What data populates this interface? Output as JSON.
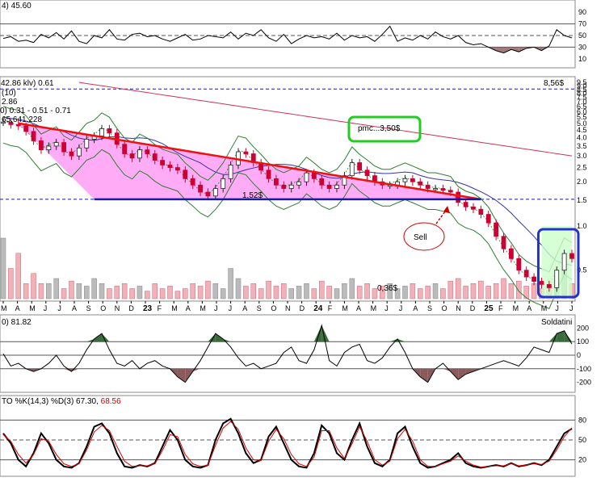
{
  "chart_data": [
    {
      "panel": "rsi",
      "type": "line",
      "title": "4) 45.60",
      "y_ticks": [
        90,
        70,
        50,
        30,
        10
      ],
      "ylim": [
        0,
        100
      ],
      "value": 45.6,
      "reference_lines": [
        70,
        50,
        30
      ],
      "series": [
        {
          "values": [
            45,
            48,
            40,
            42,
            38,
            52,
            46,
            55,
            44,
            58,
            40,
            36,
            50,
            46,
            60,
            44,
            42,
            52,
            54,
            48,
            50,
            44,
            40,
            46,
            52,
            42,
            44,
            50,
            48,
            46,
            56,
            44,
            54,
            50,
            60,
            46,
            40,
            52,
            36,
            44,
            50,
            46,
            48,
            44,
            54,
            42,
            50,
            46,
            48,
            40,
            52,
            66,
            40,
            46,
            42,
            50,
            44,
            56,
            48,
            44,
            50,
            38,
            34,
            36,
            30,
            24,
            20,
            26,
            22,
            28,
            30,
            24,
            32,
            60,
            50,
            46
          ]
        }
      ]
    },
    {
      "panel": "price",
      "type": "line",
      "title": "42.86 klv) 0.61",
      "legend_lines": [
        "(10)",
        "2.86",
        "0) 0.31 - 0.51 - 0.71",
        "65,641,228"
      ],
      "y_ticks": [
        "9.5",
        "9.0",
        "8.5",
        "8.0",
        "7.5",
        "7.0",
        "6.5",
        "6.0",
        "5.5",
        "5.0",
        "4.5",
        "4.0",
        "3.5",
        "3.0",
        "2.5",
        "2.0",
        "1.5",
        "1.0",
        "0.5"
      ],
      "scale": "log",
      "annotations": [
        {
          "text": "8,56$"
        },
        {
          "text": "pmc...3,50$"
        },
        {
          "text": "1,52$"
        },
        {
          "text": "0,36$"
        },
        {
          "text": "Sell"
        }
      ],
      "levels": {
        "horizontal_support": 1.52,
        "dashed_top": 8.56,
        "dashed_mid": 1.52
      },
      "series": [
        {
          "name": "price",
          "values": [
            5.1,
            4.9,
            4.8,
            4.4,
            3.8,
            3.3,
            3.5,
            3.7,
            3.2,
            3.0,
            3.4,
            3.9,
            4.1,
            4.6,
            4.3,
            3.6,
            3.1,
            2.9,
            3.3,
            3.1,
            2.8,
            2.6,
            2.5,
            2.4,
            2.1,
            1.9,
            1.7,
            1.6,
            1.8,
            2.1,
            2.6,
            3.2,
            3.1,
            2.7,
            2.4,
            2.1,
            1.9,
            1.8,
            1.9,
            2.0,
            2.3,
            2.1,
            1.9,
            1.8,
            1.9,
            2.2,
            2.7,
            2.4,
            2.2,
            2.0,
            1.9,
            1.9,
            2.0,
            2.1,
            2.0,
            1.9,
            1.8,
            1.8,
            1.75,
            1.7,
            1.45,
            1.35,
            1.3,
            1.2,
            1.05,
            0.85,
            0.7,
            0.6,
            0.5,
            0.45,
            0.42,
            0.4,
            0.38,
            0.5,
            0.65,
            0.6
          ]
        },
        {
          "name": "volume",
          "values": [
            120,
            60,
            90,
            30,
            50,
            30,
            30,
            40,
            20,
            35,
            30,
            25,
            40,
            30,
            20,
            25,
            30,
            20,
            25,
            15,
            30,
            20,
            25,
            15,
            20,
            30,
            25,
            35,
            30,
            20,
            60,
            40,
            25,
            30,
            20,
            35,
            25,
            30,
            20,
            25,
            30,
            20,
            35,
            25,
            20,
            30,
            40,
            25,
            30,
            20,
            25,
            30,
            20,
            25,
            30,
            20,
            25,
            30,
            20,
            35,
            40,
            25,
            30,
            35,
            25,
            30,
            40,
            30,
            35,
            25,
            30,
            20,
            25,
            40,
            60,
            30
          ]
        }
      ]
    },
    {
      "panel": "cci",
      "type": "line",
      "title": "0) 81.82",
      "note": "Soldatini",
      "y_ticks": [
        200,
        100,
        0,
        -100,
        -200
      ],
      "ylim": [
        -250,
        250
      ],
      "series": [
        {
          "values": [
            10,
            -80,
            -60,
            -100,
            -120,
            -100,
            -60,
            0,
            -80,
            -120,
            -60,
            40,
            120,
            160,
            40,
            -60,
            -80,
            -40,
            -100,
            -60,
            -40,
            -80,
            -100,
            -160,
            -200,
            -120,
            -40,
            60,
            160,
            120,
            60,
            -20,
            -80,
            -60,
            -100,
            -80,
            -60,
            20,
            60,
            -40,
            -60,
            40,
            220,
            -40,
            -80,
            20,
            60,
            80,
            -40,
            -60,
            -20,
            60,
            120,
            20,
            -100,
            -160,
            -200,
            -100,
            -60,
            -120,
            -180,
            -140,
            -120,
            -100,
            -80,
            -60,
            -40,
            -60,
            -80,
            -20,
            60,
            40,
            20,
            160,
            180,
            82
          ]
        }
      ]
    },
    {
      "panel": "stochastic",
      "type": "line",
      "title": "TO %K(14,3) %D(3) 67.30, 68.56",
      "title_k": "TO %K(14,3) %D(3) 67.30,",
      "title_d": "68.56",
      "y_ticks": [
        80,
        50,
        20
      ],
      "ylim": [
        0,
        100
      ],
      "series": [
        {
          "name": "%K",
          "values": [
            60,
            45,
            20,
            10,
            30,
            60,
            45,
            20,
            10,
            8,
            15,
            40,
            70,
            75,
            60,
            30,
            10,
            8,
            12,
            10,
            15,
            40,
            65,
            50,
            20,
            10,
            8,
            12,
            50,
            75,
            82,
            60,
            30,
            15,
            20,
            55,
            70,
            45,
            20,
            10,
            8,
            30,
            72,
            60,
            30,
            20,
            50,
            75,
            40,
            15,
            10,
            20,
            60,
            70,
            40,
            15,
            8,
            10,
            15,
            20,
            30,
            15,
            10,
            8,
            10,
            12,
            10,
            15,
            10,
            12,
            15,
            12,
            20,
            40,
            60,
            67
          ]
        },
        {
          "name": "%D",
          "values": [
            58,
            48,
            28,
            15,
            28,
            52,
            48,
            28,
            14,
            10,
            14,
            35,
            62,
            72,
            64,
            40,
            18,
            10,
            11,
            11,
            14,
            34,
            58,
            55,
            28,
            14,
            10,
            12,
            42,
            68,
            78,
            66,
            38,
            20,
            19,
            48,
            66,
            52,
            28,
            14,
            10,
            24,
            64,
            64,
            38,
            22,
            44,
            70,
            48,
            20,
            12,
            18,
            52,
            66,
            48,
            20,
            10,
            10,
            14,
            18,
            26,
            18,
            12,
            9,
            10,
            11,
            11,
            14,
            11,
            12,
            14,
            13,
            18,
            35,
            55,
            68.56
          ]
        }
      ]
    }
  ],
  "x_axis": {
    "labels": [
      "M",
      "A",
      "M",
      "J",
      "J",
      "A",
      "S",
      "O",
      "N",
      "D",
      "23",
      "F",
      "M",
      "A",
      "M",
      "J",
      "J",
      "A",
      "S",
      "O",
      "N",
      "D",
      "24",
      "F",
      "M",
      "A",
      "M",
      "J",
      "J",
      "A",
      "S",
      "O",
      "N",
      "D",
      "25",
      "F",
      "M",
      "A",
      "M",
      "J",
      "J"
    ],
    "year_labels": [
      "23",
      "24",
      "25"
    ]
  },
  "colors": {
    "price_up": "#222222",
    "price_down": "#cc0033",
    "triangle_fill": "#ff66ee",
    "bollinger": "#2e7d32",
    "ma_long": "#cc3355",
    "ma_mid": "#3333aa",
    "trend_red": "#ee1111",
    "support_blue": "#1a1aaa",
    "pmc_box": "#22cc22",
    "highlight_box": "#2233cc",
    "green_area": "#ccffcc"
  }
}
